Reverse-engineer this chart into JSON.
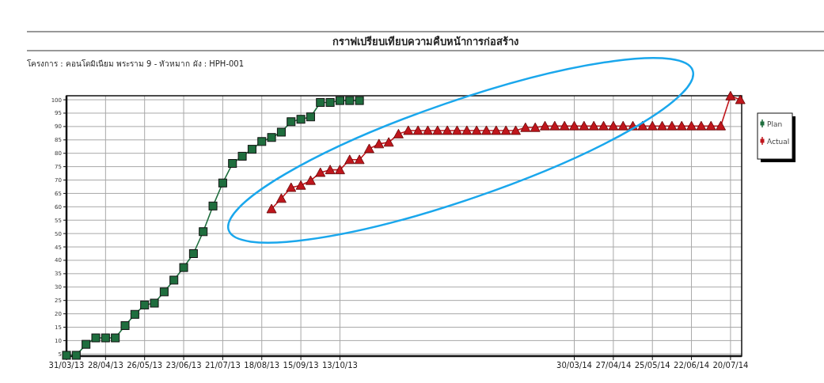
{
  "chart_data": {
    "type": "line",
    "title": "กราฟเปรียบเทียบความคืบหน้าการก่อสร้าง",
    "subtitle": "โครงการ :  คอนโดมิเนียม พระราม 9 - หัวหมาก    ผัง :  HPH-001",
    "xlim": [
      "2013-03-31",
      "2014-07-28"
    ],
    "ylim": [
      4.2,
      101.5
    ],
    "xticks": [
      {
        "value": "2013-03-31",
        "label": "31/03/13"
      },
      {
        "value": "2013-04-28",
        "label": "28/04/13"
      },
      {
        "value": "2013-05-26",
        "label": "26/05/13"
      },
      {
        "value": "2013-06-23",
        "label": "23/06/13"
      },
      {
        "value": "2013-07-21",
        "label": "21/07/13"
      },
      {
        "value": "2013-08-18",
        "label": "18/08/13"
      },
      {
        "value": "2013-09-15",
        "label": "15/09/13"
      },
      {
        "value": "2013-10-13",
        "label": "13/10/13"
      },
      {
        "value": "2014-03-30",
        "label": "30/03/14"
      },
      {
        "value": "2014-04-27",
        "label": "27/04/14"
      },
      {
        "value": "2014-05-25",
        "label": "25/05/14"
      },
      {
        "value": "2014-06-22",
        "label": "22/06/14"
      },
      {
        "value": "2014-07-20",
        "label": "20/07/14"
      }
    ],
    "yticks": [
      5,
      10,
      15,
      20,
      25,
      30,
      35,
      40,
      45,
      50,
      55,
      60,
      65,
      70,
      75,
      80,
      85,
      90,
      95,
      100
    ],
    "grid": true,
    "legend": "right",
    "line_style": "solid",
    "series": [
      {
        "name": "Plan",
        "color": "#1f6e3e",
        "marker": "square",
        "x": [
          "2013-03-31",
          "2013-04-07",
          "2013-04-14",
          "2013-04-21",
          "2013-04-28",
          "2013-05-05",
          "2013-05-12",
          "2013-05-19",
          "2013-05-26",
          "2013-06-02",
          "2013-06-09",
          "2013-06-16",
          "2013-06-23",
          "2013-06-30",
          "2013-07-07",
          "2013-07-14",
          "2013-07-21",
          "2013-07-28",
          "2013-08-04",
          "2013-08-11",
          "2013-08-18",
          "2013-08-25",
          "2013-09-01",
          "2013-09-08",
          "2013-09-15",
          "2013-09-22",
          "2013-09-29",
          "2013-10-06",
          "2013-10-13",
          "2013-10-20",
          "2013-10-27"
        ],
        "values": [
          4.5,
          4.5,
          8.6,
          11,
          11,
          11,
          15.6,
          19.8,
          23.3,
          24,
          28.2,
          32.6,
          37.3,
          42.5,
          50.7,
          60.3,
          68.9,
          76.2,
          78.9,
          81.5,
          84.4,
          85.9,
          87.9,
          91.8,
          92.7,
          93.6,
          99,
          99,
          99.7,
          99.7,
          99.7
        ]
      },
      {
        "name": "Actual",
        "color": "#c0161c",
        "marker": "triangle",
        "x": [
          "2013-08-25",
          "2013-09-01",
          "2013-09-08",
          "2013-09-15",
          "2013-09-22",
          "2013-09-29",
          "2013-10-06",
          "2013-10-13",
          "2013-10-20",
          "2013-10-27",
          "2013-11-03",
          "2013-11-10",
          "2013-11-17",
          "2013-11-24",
          "2013-12-01",
          "2013-12-08",
          "2013-12-15",
          "2013-12-22",
          "2013-12-29",
          "2014-01-05",
          "2014-01-12",
          "2014-01-19",
          "2014-01-26",
          "2014-02-02",
          "2014-02-09",
          "2014-02-16",
          "2014-02-23",
          "2014-03-02",
          "2014-03-09",
          "2014-03-16",
          "2014-03-23",
          "2014-03-30",
          "2014-04-06",
          "2014-04-13",
          "2014-04-20",
          "2014-04-27",
          "2014-05-04",
          "2014-05-11",
          "2014-05-18",
          "2014-05-25",
          "2014-06-01",
          "2014-06-08",
          "2014-06-15",
          "2014-06-22",
          "2014-06-29",
          "2014-07-06",
          "2014-07-13",
          "2014-07-20",
          "2014-07-27"
        ],
        "values": [
          59.2,
          63.1,
          67.2,
          68,
          69.8,
          72.8,
          73.8,
          73.8,
          77.6,
          77.6,
          81.7,
          83.5,
          84.1,
          87.2,
          88.5,
          88.5,
          88.5,
          88.5,
          88.5,
          88.5,
          88.5,
          88.5,
          88.5,
          88.5,
          88.5,
          88.5,
          89.6,
          89.6,
          90.2,
          90.2,
          90.2,
          90.2,
          90.2,
          90.2,
          90.2,
          90.2,
          90.2,
          90.2,
          90.2,
          90.2,
          90.2,
          90.2,
          90.2,
          90.2,
          90.2,
          90.2,
          90.2,
          101.4,
          100
        ]
      }
    ]
  }
}
